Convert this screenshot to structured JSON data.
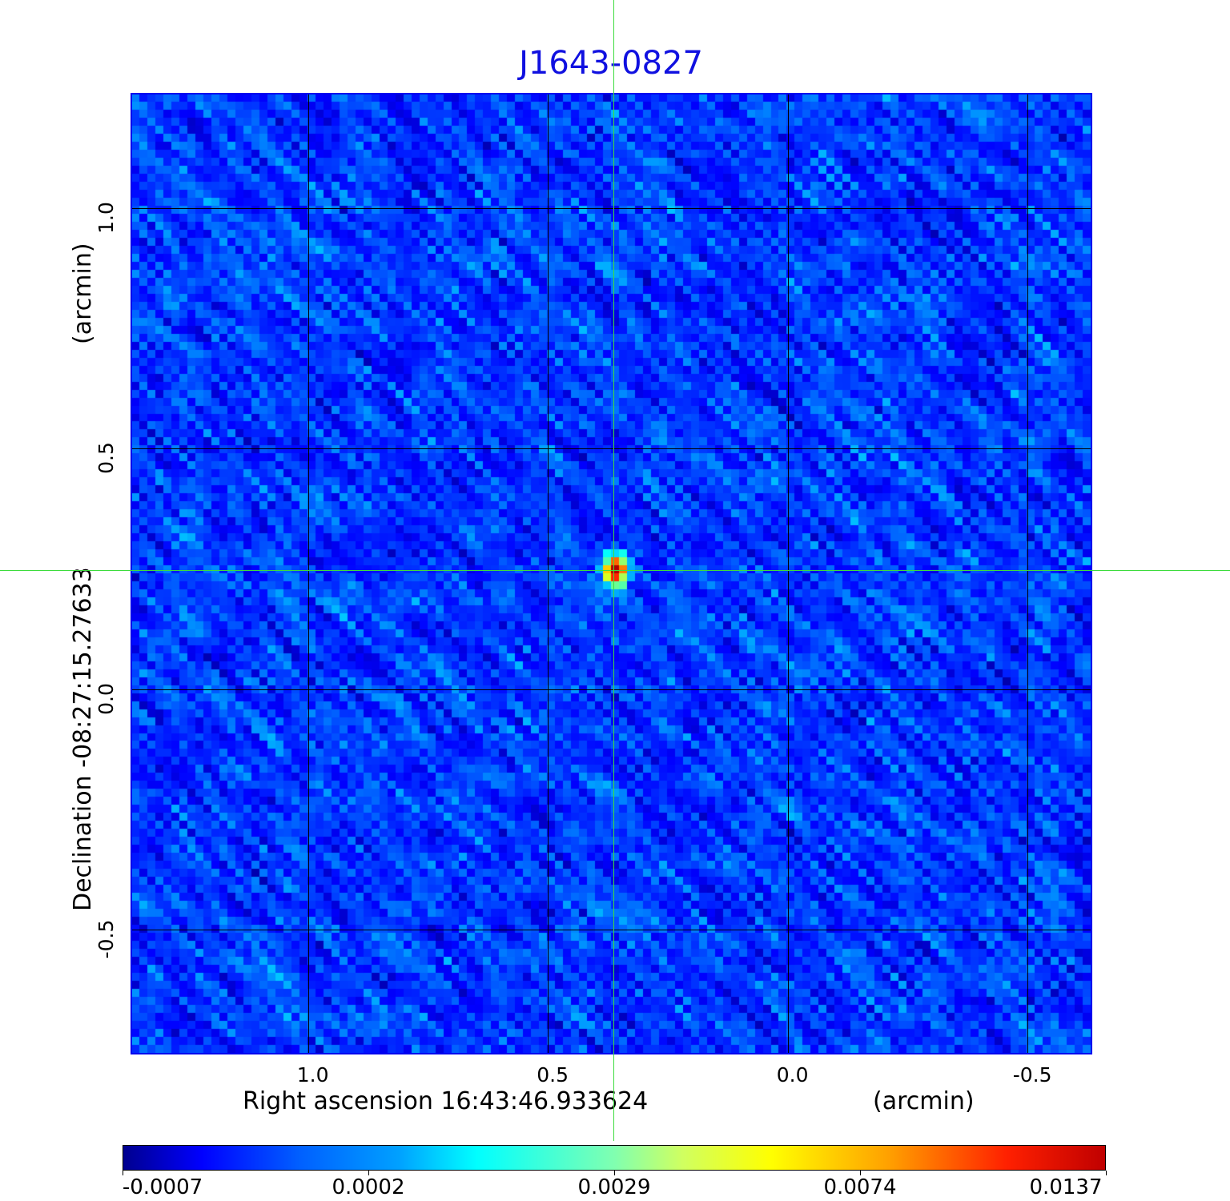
{
  "chart_data": {
    "type": "heatmap",
    "title": "J1643-0827",
    "xlabel": "Right ascension  16:43:46.933624",
    "xunit": "(arcmin)",
    "ylabel": "Declination  -08:27:15.27633",
    "yunit": "(arcmin)",
    "x_ticks": [
      "1.0",
      "0.5",
      "0.0",
      "-0.5"
    ],
    "x_tick_values": [
      1.0,
      0.5,
      0.0,
      -0.5
    ],
    "y_ticks": [
      "1.0",
      "0.5",
      "0.0",
      "-0.5"
    ],
    "y_tick_values": [
      1.0,
      0.5,
      0.0,
      -0.5
    ],
    "xlim": [
      1.37,
      -0.635
    ],
    "ylim": [
      -0.76,
      1.24
    ],
    "grid": true,
    "colormap": "jet",
    "colorbar": {
      "placement": "bottom",
      "ticks": [
        "-0.0007",
        "0.0002",
        "0.0029",
        "0.0074",
        "0.0137"
      ],
      "min": -0.0007,
      "max": 0.0137
    },
    "crosshair": {
      "x": 0.36,
      "y": 0.25,
      "color": "#3ddc3d"
    },
    "source_peak": {
      "x": 0.36,
      "y": 0.25,
      "value": 0.0137
    },
    "colors": {
      "title": "#1010e0",
      "frame": "#0000ee",
      "grid": "#000000"
    }
  }
}
